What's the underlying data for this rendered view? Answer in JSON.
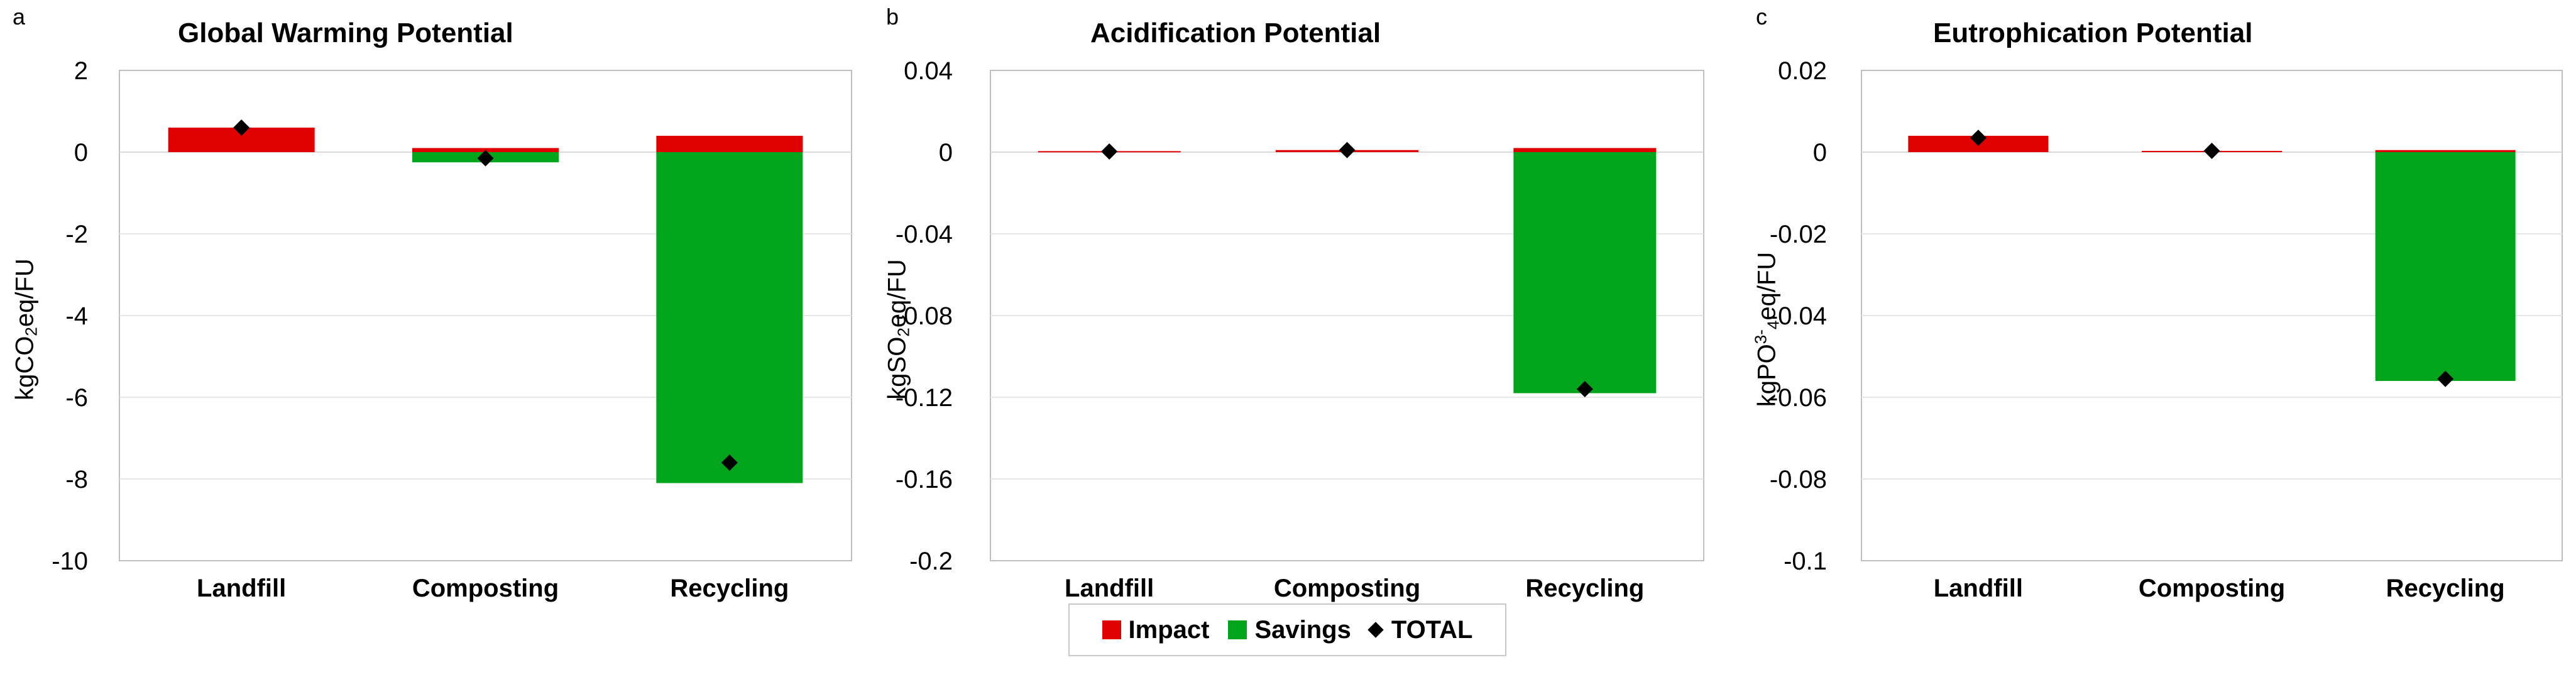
{
  "colors": {
    "impact": "#e00000",
    "savings": "#00a51c",
    "total": "#000000",
    "axis": "#bfbfbf",
    "grid": "#e6e6e6"
  },
  "legend": {
    "impact": "Impact",
    "savings": "Savings",
    "total": "TOTAL"
  },
  "chart_data": [
    {
      "panel": "a",
      "type": "bar",
      "stacked": true,
      "title": "Global Warming Potential",
      "ylabel": {
        "pre": "kgCO",
        "sub": "2",
        "sup": "",
        "post": "eq/FU"
      },
      "categories": [
        "Landfill",
        "Composting",
        "Recycling"
      ],
      "series": [
        {
          "name": "Impact",
          "values": [
            0.6,
            0.1,
            0.4
          ]
        },
        {
          "name": "Savings",
          "values": [
            0,
            -0.25,
            -8.1
          ]
        },
        {
          "name": "TOTAL",
          "values": [
            0.6,
            -0.15,
            -7.6
          ]
        }
      ],
      "ylim": [
        -10,
        2
      ],
      "yticks": [
        2,
        0,
        -2,
        -4,
        -6,
        -8,
        -10
      ],
      "ytick_labels": [
        "2",
        "0",
        "-2",
        "-4",
        "-6",
        "-8",
        "-10"
      ]
    },
    {
      "panel": "b",
      "type": "bar",
      "stacked": true,
      "title": "Acidification Potential",
      "ylabel": {
        "pre": "kgSO",
        "sub": "2",
        "sup": "",
        "post": "eq/FU"
      },
      "categories": [
        "Landfill",
        "Composting",
        "Recycling"
      ],
      "series": [
        {
          "name": "Impact",
          "values": [
            0.0005,
            0.001,
            0.002
          ]
        },
        {
          "name": "Savings",
          "values": [
            0,
            0,
            -0.118
          ]
        },
        {
          "name": "TOTAL",
          "values": [
            0.0003,
            0.001,
            -0.116
          ]
        }
      ],
      "ylim": [
        -0.2,
        0.04
      ],
      "yticks": [
        0.04,
        0,
        -0.04,
        -0.08,
        -0.12,
        -0.16,
        -0.2
      ],
      "ytick_labels": [
        "0.04",
        "0",
        "-0.04",
        "-0.08",
        "-0.12",
        "-0.16",
        "-0.2"
      ]
    },
    {
      "panel": "c",
      "type": "bar",
      "stacked": true,
      "title": "Eutrophication Potential",
      "ylabel": {
        "pre": "kgPO",
        "sub": "4",
        "sup": "3-",
        "post": "eq/FU"
      },
      "categories": [
        "Landfill",
        "Composting",
        "Recycling"
      ],
      "series": [
        {
          "name": "Impact",
          "values": [
            0.004,
            0.0003,
            0.0005
          ]
        },
        {
          "name": "Savings",
          "values": [
            0,
            0,
            -0.056
          ]
        },
        {
          "name": "TOTAL",
          "values": [
            0.0035,
            0.0003,
            -0.0555
          ]
        }
      ],
      "ylim": [
        -0.1,
        0.02
      ],
      "yticks": [
        0.02,
        0,
        -0.02,
        -0.04,
        -0.06,
        -0.08,
        -0.1
      ],
      "ytick_labels": [
        "0.02",
        "0",
        "-0.02",
        "-0.04",
        "-0.06",
        "-0.08",
        "-0.1"
      ]
    }
  ]
}
